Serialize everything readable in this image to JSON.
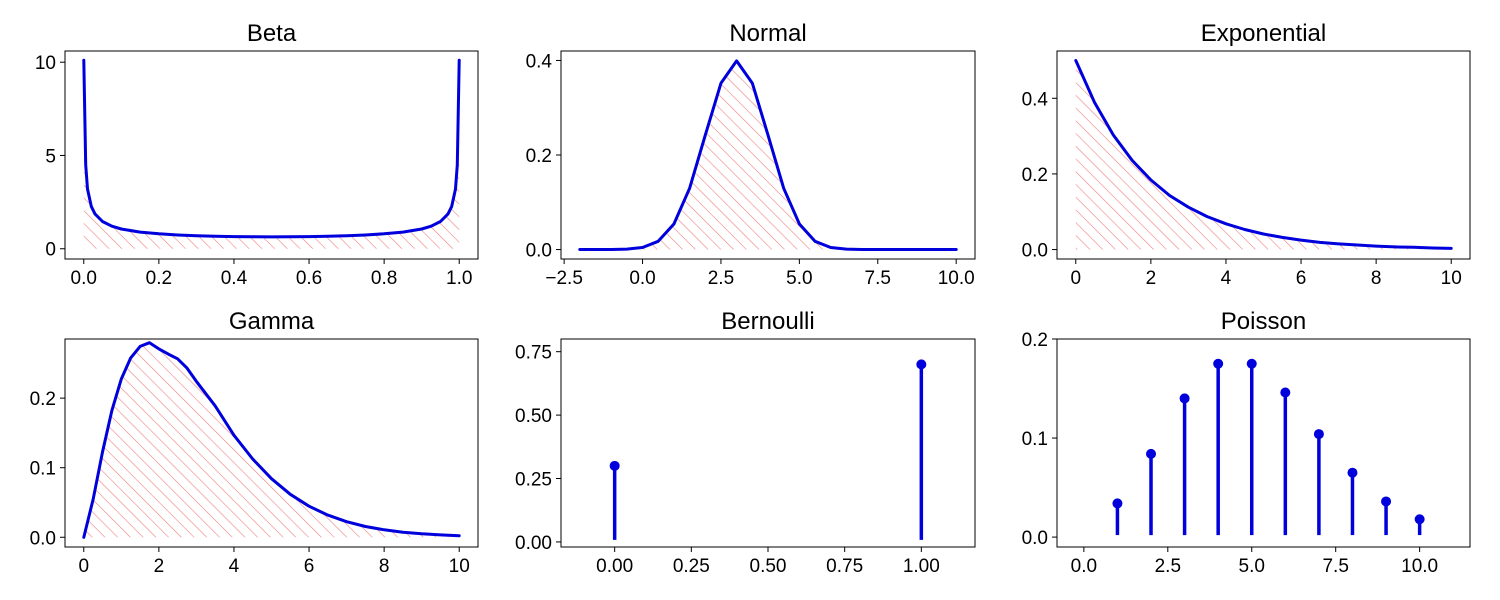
{
  "colors": {
    "curve": "#0000dd",
    "hatch": "#f08080",
    "axis": "#000000"
  },
  "chart_data": [
    {
      "type": "area",
      "title": "Beta",
      "xlim": [
        -0.05,
        1.05
      ],
      "ylim": [
        -0.55,
        10.6
      ],
      "xticks": [
        0.0,
        0.2,
        0.4,
        0.6,
        0.8,
        1.0
      ],
      "xtick_labels": [
        "0.0",
        "0.2",
        "0.4",
        "0.6",
        "0.8",
        "1.0"
      ],
      "yticks": [
        0,
        5,
        10
      ],
      "ytick_labels": [
        "0",
        "5",
        "10"
      ],
      "x": [
        0.0,
        0.005,
        0.01,
        0.02,
        0.03,
        0.05,
        0.075,
        0.1,
        0.15,
        0.2,
        0.25,
        0.3,
        0.35,
        0.4,
        0.45,
        0.5,
        0.55,
        0.6,
        0.65,
        0.7,
        0.75,
        0.8,
        0.85,
        0.9,
        0.925,
        0.95,
        0.97,
        0.98,
        0.99,
        0.995,
        1.0
      ],
      "y": [
        10.1,
        4.5,
        3.2,
        2.27,
        1.87,
        1.46,
        1.21,
        1.06,
        0.89,
        0.8,
        0.735,
        0.695,
        0.667,
        0.65,
        0.641,
        0.637,
        0.641,
        0.65,
        0.667,
        0.695,
        0.735,
        0.8,
        0.89,
        1.06,
        1.21,
        1.46,
        1.87,
        2.27,
        3.2,
        4.5,
        10.1
      ]
    },
    {
      "type": "area",
      "title": "Normal",
      "xlim": [
        -2.6,
        10.6
      ],
      "ylim": [
        -0.02,
        0.42
      ],
      "xticks": [
        -2.5,
        0.0,
        2.5,
        5.0,
        7.5,
        10.0
      ],
      "xtick_labels": [
        "−2.5",
        "0.0",
        "2.5",
        "5.0",
        "7.5",
        "10.0"
      ],
      "yticks": [
        0.0,
        0.2,
        0.4
      ],
      "ytick_labels": [
        "0.0",
        "0.2",
        "0.4"
      ],
      "x": [
        -2.0,
        -1.0,
        -0.5,
        0.0,
        0.5,
        1.0,
        1.5,
        2.0,
        2.5,
        3.0,
        3.5,
        4.0,
        4.5,
        5.0,
        5.5,
        6.0,
        6.5,
        7.0,
        8.0,
        9.0,
        10.0
      ],
      "y": [
        0.0,
        0.0001,
        0.0009,
        0.0044,
        0.0175,
        0.054,
        0.1295,
        0.242,
        0.352,
        0.399,
        0.352,
        0.242,
        0.1295,
        0.054,
        0.0175,
        0.0044,
        0.0009,
        0.0001,
        0.0,
        0.0,
        0.0
      ]
    },
    {
      "type": "area",
      "title": "Exponential",
      "xlim": [
        -0.5,
        10.5
      ],
      "ylim": [
        -0.025,
        0.525
      ],
      "xticks": [
        0,
        2,
        4,
        6,
        8,
        10
      ],
      "xtick_labels": [
        "0",
        "2",
        "4",
        "6",
        "8",
        "10"
      ],
      "yticks": [
        0.0,
        0.2,
        0.4
      ],
      "ytick_labels": [
        "0.0",
        "0.2",
        "0.4"
      ],
      "x": [
        0.0,
        0.5,
        1.0,
        1.5,
        2.0,
        2.5,
        3.0,
        3.5,
        4.0,
        4.5,
        5.0,
        5.5,
        6.0,
        6.5,
        7.0,
        7.5,
        8.0,
        8.5,
        9.0,
        9.5,
        10.0
      ],
      "y": [
        0.5,
        0.389,
        0.303,
        0.236,
        0.184,
        0.143,
        0.112,
        0.087,
        0.068,
        0.053,
        0.041,
        0.032,
        0.025,
        0.019,
        0.015,
        0.012,
        0.009,
        0.007,
        0.006,
        0.004,
        0.003
      ]
    },
    {
      "type": "area",
      "title": "Gamma",
      "xlim": [
        -0.5,
        10.5
      ],
      "ylim": [
        -0.014,
        0.285
      ],
      "xticks": [
        0,
        2,
        4,
        6,
        8,
        10
      ],
      "xtick_labels": [
        "0",
        "2",
        "4",
        "6",
        "8",
        "10"
      ],
      "yticks": [
        0.0,
        0.1,
        0.2
      ],
      "ytick_labels": [
        "0.0",
        "0.1",
        "0.2"
      ],
      "x": [
        0.0,
        0.25,
        0.5,
        0.75,
        1.0,
        1.25,
        1.5,
        1.75,
        2.0,
        2.25,
        2.5,
        2.75,
        3.0,
        3.5,
        4.0,
        4.5,
        5.0,
        5.5,
        6.0,
        6.5,
        7.0,
        7.5,
        8.0,
        8.5,
        9.0,
        9.5,
        10.0
      ],
      "y": [
        0.0,
        0.055,
        0.1226,
        0.1824,
        0.2275,
        0.2578,
        0.2744,
        0.2797,
        0.2707,
        0.2633,
        0.2565,
        0.2431,
        0.224,
        0.1888,
        0.1465,
        0.1125,
        0.0842,
        0.0618,
        0.0446,
        0.0318,
        0.0223,
        0.0155,
        0.0107,
        0.0073,
        0.005,
        0.0034,
        0.0023
      ]
    },
    {
      "type": "stem",
      "title": "Bernoulli",
      "xlim": [
        -0.175,
        1.175
      ],
      "ylim": [
        -0.02,
        0.8
      ],
      "xticks": [
        0.0,
        0.25,
        0.5,
        0.75,
        1.0
      ],
      "xtick_labels": [
        "0.00",
        "0.25",
        "0.50",
        "0.75",
        "1.00"
      ],
      "yticks": [
        0.0,
        0.25,
        0.5,
        0.75
      ],
      "ytick_labels": [
        "0.00",
        "0.25",
        "0.50",
        "0.75"
      ],
      "x": [
        0,
        1
      ],
      "y": [
        0.3,
        0.7
      ]
    },
    {
      "type": "stem",
      "title": "Poisson",
      "xlim": [
        -0.8,
        11.5
      ],
      "ylim": [
        -0.01,
        0.2
      ],
      "xticks": [
        0.0,
        2.5,
        5.0,
        7.5,
        10.0
      ],
      "xtick_labels": [
        "0.0",
        "2.5",
        "5.0",
        "7.5",
        "10.0"
      ],
      "yticks": [
        0.0,
        0.1,
        0.2
      ],
      "ytick_labels": [
        "0.0",
        "0.1",
        "0.2"
      ],
      "x": [
        1,
        2,
        3,
        4,
        5,
        6,
        7,
        8,
        9,
        10
      ],
      "y": [
        0.034,
        0.084,
        0.14,
        0.175,
        0.175,
        0.146,
        0.104,
        0.065,
        0.036,
        0.018
      ]
    }
  ]
}
